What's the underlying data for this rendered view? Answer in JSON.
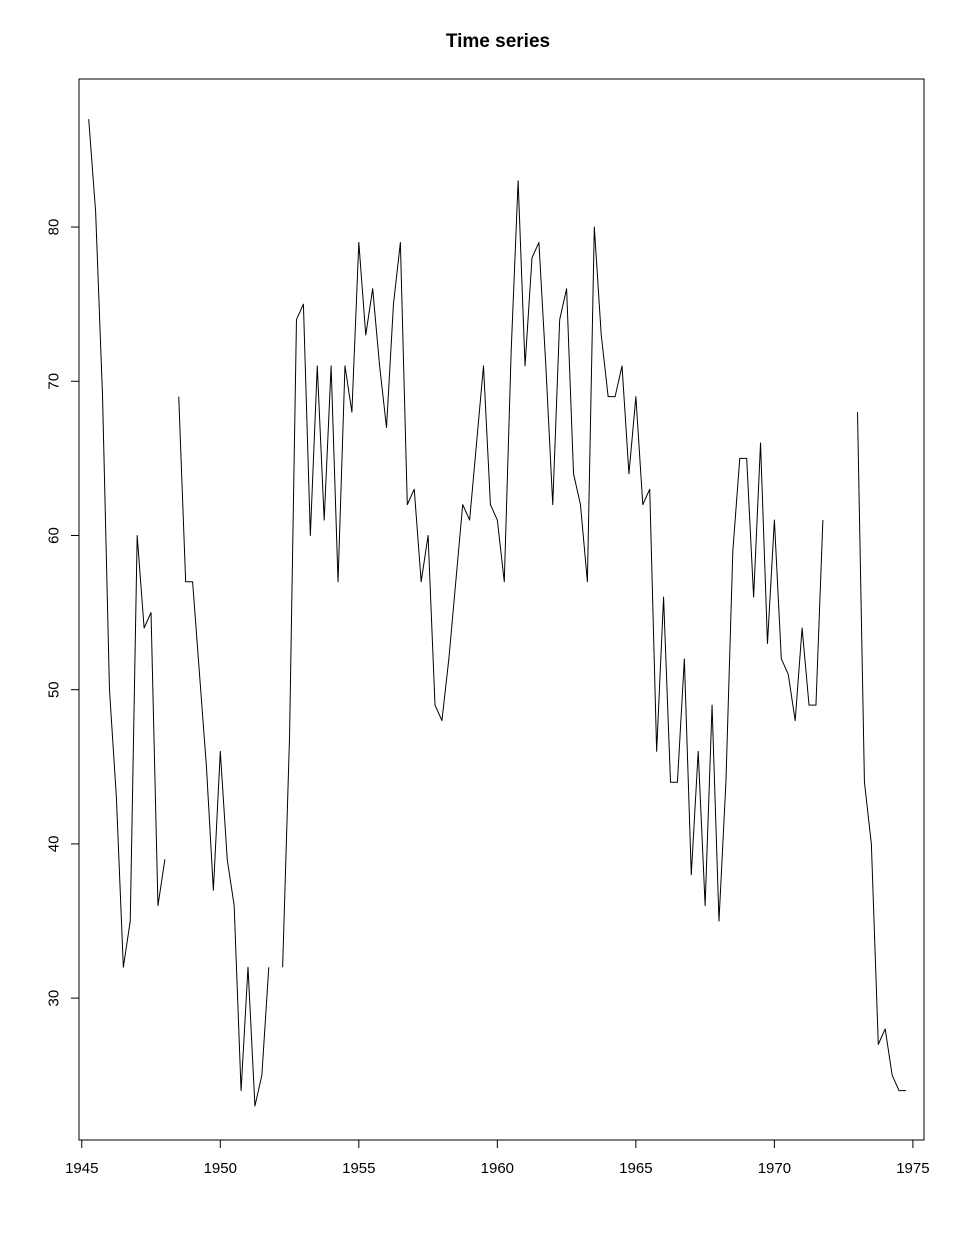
{
  "chart_data": {
    "type": "line",
    "title": "Time series",
    "xlabel": "",
    "ylabel": "",
    "xlim": [
      1944.9,
      1975.4
    ],
    "ylim": [
      20.8,
      89.6
    ],
    "x_ticks": [
      1945,
      1950,
      1955,
      1960,
      1965,
      1970,
      1975
    ],
    "y_ticks": [
      30,
      40,
      50,
      60,
      70,
      80
    ],
    "x_tick_labels": [
      "1945",
      "1950",
      "1955",
      "1960",
      "1965",
      "1970",
      "1975"
    ],
    "y_tick_labels": [
      "30",
      "40",
      "50",
      "60",
      "70",
      "80"
    ],
    "grid": false,
    "legend": "none",
    "line_color": "#000000",
    "series": [
      {
        "start": 1945.25,
        "frequency": 4,
        "values": [
          87,
          81,
          69,
          50,
          43,
          32,
          35,
          60,
          54,
          55,
          36,
          39,
          null,
          69,
          57,
          57,
          51,
          45,
          37,
          46,
          39,
          36,
          24,
          32,
          23,
          25,
          32,
          null,
          32,
          47,
          74,
          75,
          60,
          71,
          61,
          71,
          57,
          71,
          68,
          79,
          73,
          76,
          71,
          67,
          75,
          79,
          62,
          63,
          57,
          60,
          49,
          48,
          52,
          57,
          62,
          61,
          66,
          71,
          62,
          61,
          57,
          72,
          83,
          71,
          78,
          79,
          71,
          62,
          74,
          76,
          64,
          62,
          57,
          80,
          73,
          69,
          69,
          71,
          64,
          69,
          62,
          63,
          46,
          56,
          44,
          44,
          52,
          38,
          46,
          36,
          49,
          35,
          44,
          59,
          65,
          65,
          56,
          66,
          53,
          61,
          52,
          51,
          48,
          54,
          49,
          49,
          61,
          null,
          null,
          null,
          null,
          68,
          44,
          40,
          27,
          28,
          25,
          24,
          24
        ]
      }
    ]
  }
}
